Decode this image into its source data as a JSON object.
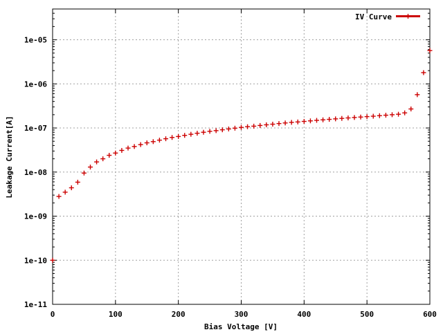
{
  "chart_data": {
    "type": "scatter",
    "xlabel": "Bias Voltage [V]",
    "ylabel": "Leakage Current[A]",
    "xlim": [
      0,
      600
    ],
    "ylim": [
      1e-11,
      5e-05
    ],
    "y_scale": "log",
    "grid": true,
    "legend_position": "top-right",
    "x_ticks": [
      0,
      100,
      200,
      300,
      400,
      500,
      600
    ],
    "x_tick_labels": [
      "0",
      "100",
      "200",
      "300",
      "400",
      "500",
      "600"
    ],
    "y_ticks": [
      1e-11,
      1e-10,
      1e-09,
      1e-08,
      1e-07,
      1e-06,
      1e-05
    ],
    "y_tick_labels": [
      "1e-11",
      "1e-10",
      "1e-09",
      "1e-08",
      "1e-07",
      "1e-06",
      "1e-05"
    ],
    "series": [
      {
        "name": "IV Curve",
        "color": "#cc0000",
        "marker": "plus",
        "x": [
          0,
          10,
          20,
          30,
          40,
          50,
          60,
          70,
          80,
          90,
          100,
          110,
          120,
          130,
          140,
          150,
          160,
          170,
          180,
          190,
          200,
          210,
          220,
          230,
          240,
          250,
          260,
          270,
          280,
          290,
          300,
          310,
          320,
          330,
          340,
          350,
          360,
          370,
          380,
          390,
          400,
          410,
          420,
          430,
          440,
          450,
          460,
          470,
          480,
          490,
          500,
          510,
          520,
          530,
          540,
          550,
          560,
          570,
          580,
          590,
          600
        ],
        "y": [
          1e-10,
          2.8e-09,
          3.5e-09,
          4.4e-09,
          5.9e-09,
          9.5e-09,
          1.3e-08,
          1.7e-08,
          2e-08,
          2.4e-08,
          2.7e-08,
          3.1e-08,
          3.5e-08,
          3.8e-08,
          4.2e-08,
          4.6e-08,
          4.9e-08,
          5.3e-08,
          5.7e-08,
          6.1e-08,
          6.4e-08,
          6.8e-08,
          7.2e-08,
          7.6e-08,
          8e-08,
          8.4e-08,
          8.7e-08,
          9.1e-08,
          9.5e-08,
          9.9e-08,
          1.03e-07,
          1.07e-07,
          1.1e-07,
          1.14e-07,
          1.18e-07,
          1.22e-07,
          1.26e-07,
          1.3e-07,
          1.34e-07,
          1.37e-07,
          1.41e-07,
          1.45e-07,
          1.49e-07,
          1.53e-07,
          1.57e-07,
          1.61e-07,
          1.65e-07,
          1.69e-07,
          1.73e-07,
          1.77e-07,
          1.81e-07,
          1.85e-07,
          1.9e-07,
          1.95e-07,
          2e-07,
          2.05e-07,
          2.2e-07,
          2.7e-07,
          5.7e-07,
          1.8e-06,
          5.7e-06
        ]
      }
    ]
  }
}
